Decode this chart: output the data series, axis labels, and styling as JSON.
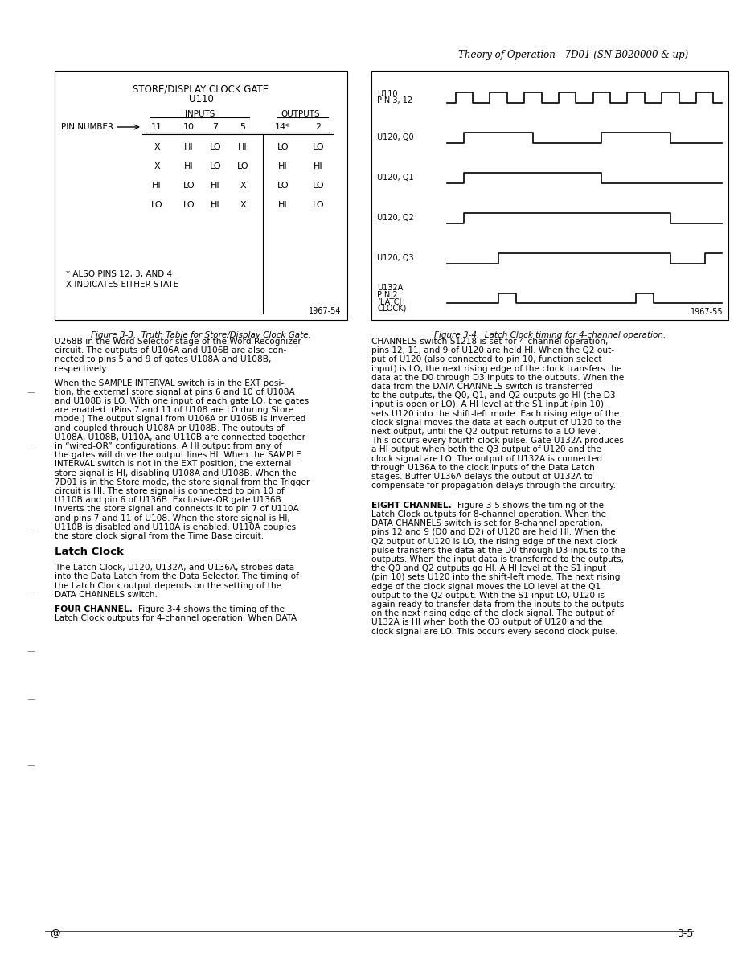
{
  "page_header": "Theory of Operation—7D01 (SN B020000 & up)",
  "page_footer_left": "@",
  "page_footer_right": "3-5",
  "fig1_title1": "STORE/DISPLAY CLOCK GATE",
  "fig1_title2": "U110",
  "fig1_inputs": "INPUTS",
  "fig1_outputs": "OUTPUTS",
  "fig1_pin_label": "PIN NUMBER",
  "fig1_pins": [
    "11",
    "10",
    "7",
    "5",
    "14*",
    "2"
  ],
  "fig1_rows": [
    [
      "X",
      "HI",
      "LO",
      "HI",
      "LO",
      "LO"
    ],
    [
      "X",
      "HI",
      "LO",
      "LO",
      "HI",
      "HI"
    ],
    [
      "HI",
      "LO",
      "HI",
      "X",
      "LO",
      "LO"
    ],
    [
      "LO",
      "LO",
      "HI",
      "X",
      "HI",
      "LO"
    ]
  ],
  "fig1_note1": "* ALSO PINS 12, 3, AND 4",
  "fig1_note2": "X INDICATES EITHER STATE",
  "fig1_ref": "1967-54",
  "fig1_caption": "Figure 3-3.  Truth Table for Store/Display Clock Gate.",
  "fig2_caption": "Figure 3-4.  Latch Clock timing for 4-channel operation.",
  "fig2_ref": "1967-55",
  "fig2_labels": [
    "U110\nPIN 3, 12",
    "U120, Q0",
    "U120, Q1",
    "U120, Q2",
    "U120, Q3",
    "U132A\nPIN 2\n(LATCH\nCLOCK)"
  ],
  "bg_color": "#ffffff",
  "text_color": "#000000",
  "col1_lines": [
    "U268B in the Word Selector stage of the Word Recognizer",
    "circuit. The outputs of U106A and U106B are also con-",
    "nected to pins 5 and 9 of gates U108A and U108B,",
    "respectively.",
    "",
    "When the SAMPLE INTERVAL switch is in the EXT posi-",
    "tion, the external store signal at pins 6 and 10 of U108A",
    "and U108B is LO. With one input of each gate LO, the gates",
    "are enabled. (Pins 7 and 11 of U108 are LO during Store",
    "mode.) The output signal from U106A or U106B is inverted",
    "and coupled through U108A or U108B. The outputs of",
    "U108A, U108B, U110A, and U110B are connected together",
    "in “wired-OR” configurations. A HI output from any of",
    "the gates will drive the output lines HI. When the SAMPLE",
    "INTERVAL switch is not in the EXT position, the external",
    "store signal is HI, disabling U108A and U108B. When the",
    "7D01 is in the Store mode, the store signal from the Trigger",
    "circuit is HI. The store signal is connected to pin 10 of",
    "U110B and pin 6 of U136B. Exclusive-OR gate U136B",
    "inverts the store signal and connects it to pin 7 of U110A",
    "and pins 7 and 11 of U108. When the store signal is HI,",
    "U110B is disabled and U110A is enabled. U110A couples",
    "the store clock signal from the Time Base circuit.",
    "",
    "HEADING:Latch Clock",
    "",
    "The Latch Clock, U120, U132A, and U136A, strobes data",
    "into the Data Latch from the Data Selector. The timing of",
    "the Latch Clock output depends on the setting of the",
    "DATA CHANNELS switch.",
    "",
    "BOLD:FOUR CHANNEL.  REST:Figure 3-4 shows the timing of the",
    "Latch Clock outputs for 4-channel operation. When DATA"
  ],
  "col2_lines": [
    "CHANNELS switch S1218 is set for 4-channel operation,",
    "pins 12, 11, and 9 of U120 are held HI. When the Q2 out-",
    "put of U120 (also connected to pin 10, function select",
    "input) is LO, the next rising edge of the clock transfers the",
    "data at the D0 through D3 inputs to the outputs. When the",
    "data from the DATA CHANNELS switch is transferred",
    "to the outputs, the Q0, Q1, and Q2 outputs go HI (the D3",
    "input is open or LO). A HI level at the S1 input (pin 10)",
    "sets U120 into the shift-left mode. Each rising edge of the",
    "clock signal moves the data at each output of U120 to the",
    "next output, until the Q2 output returns to a LO level.",
    "This occurs every fourth clock pulse. Gate U132A produces",
    "a HI output when both the Q3 output of U120 and the",
    "clock signal are LO. The output of U132A is connected",
    "through U136A to the clock inputs of the Data Latch",
    "stages. Buffer U136A delays the output of U132A to",
    "compensate for propagation delays through the circuitry.",
    "",
    "",
    "BOLD:EIGHT CHANNEL.  REST:Figure 3-5 shows the timing of the",
    "Latch Clock outputs for 8-channel operation. When the",
    "DATA CHANNELS switch is set for 8-channel operation,",
    "pins 12 and 9 (D0 and D2) of U120 are held HI. When the",
    "Q2 output of U120 is LO, the rising edge of the next clock",
    "pulse transfers the data at the D0 through D3 inputs to the",
    "outputs. When the input data is transferred to the outputs,",
    "the Q0 and Q2 outputs go HI. A HI level at the S1 input",
    "(pin 10) sets U120 into the shift-left mode. The next rising",
    "edge of the clock signal moves the LO level at the Q1",
    "output to the Q2 output. With the S1 input LO, U120 is",
    "again ready to transfer data from the inputs to the outputs",
    "on the next rising edge of the clock signal. The output of",
    "U132A is HI when both the Q3 output of U120 and the",
    "clock signal are LO. This occurs every second clock pulse."
  ]
}
